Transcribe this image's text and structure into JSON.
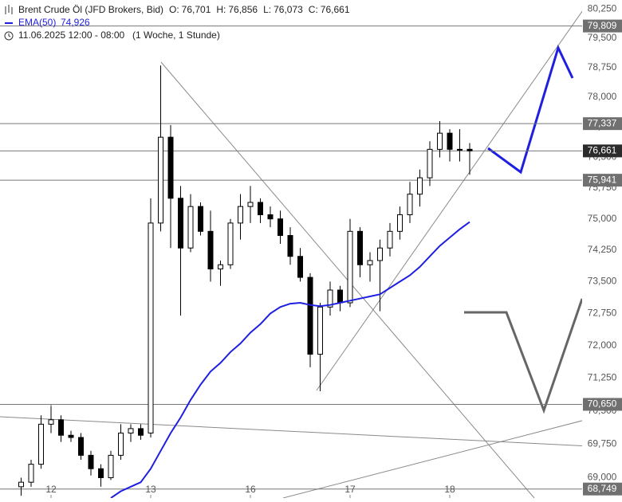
{
  "chart_data": {
    "type": "candlestick",
    "legend": {
      "ohlc": [
        {
          "key": "O:",
          "value": "76,701"
        },
        {
          "key": "H:",
          "value": "76,856"
        },
        {
          "key": "L:",
          "value": "76,073"
        },
        {
          "key": "C:",
          "value": "76,661"
        }
      ],
      "date": "11.06.2025 12:00 - 08:00",
      "period": "(1 Woche, 1 Stunde)"
    },
    "categories": [
      null,
      null,
      null,
      "12",
      null,
      null,
      null,
      null,
      null,
      null,
      null,
      null,
      null,
      "13",
      null,
      null,
      null,
      null,
      null,
      null,
      null,
      null,
      null,
      "16",
      null,
      null,
      null,
      null,
      null,
      null,
      null,
      null,
      null,
      "17",
      null,
      null,
      null,
      null,
      null,
      null,
      null,
      null,
      null,
      "18",
      null,
      null
    ],
    "series": [
      {
        "name": "Brent Crude Öl (JFD Brokers, Bid)",
        "up_color": "#ffffff",
        "down_color": "#000000",
        "open": [
          68.8,
          68.9,
          69.3,
          70.2,
          70.3,
          69.95,
          69.9,
          69.5,
          69.2,
          69.0,
          69.5,
          70.0,
          70.1,
          70.0,
          74.9,
          77.0,
          75.5,
          74.3,
          75.3,
          74.7,
          73.8,
          73.9,
          74.9,
          75.3,
          75.4,
          75.1,
          75.0,
          74.6,
          74.1,
          73.6,
          71.8,
          72.9,
          73.3,
          73.0,
          74.7,
          73.9,
          74.0,
          74.3,
          74.7,
          75.1,
          75.6,
          76.0,
          76.7,
          77.1,
          76.7,
          76.701
        ],
        "high": [
          69.0,
          69.4,
          70.4,
          70.6,
          70.4,
          70.05,
          70.0,
          69.6,
          69.3,
          69.6,
          70.2,
          70.2,
          70.2,
          75.5,
          78.8,
          77.3,
          75.8,
          75.6,
          75.4,
          75.2,
          74.0,
          75.0,
          75.6,
          75.8,
          75.5,
          75.3,
          75.2,
          74.8,
          74.3,
          73.7,
          73.0,
          73.5,
          73.4,
          75.0,
          74.8,
          74.2,
          74.5,
          74.9,
          75.3,
          75.9,
          76.2,
          76.9,
          77.4,
          77.2,
          77.2,
          76.856
        ],
        "low": [
          68.6,
          68.8,
          69.2,
          70.0,
          69.8,
          69.8,
          69.4,
          69.05,
          68.8,
          68.95,
          69.4,
          69.8,
          69.85,
          69.9,
          74.7,
          74.3,
          72.7,
          74.2,
          74.6,
          73.5,
          73.4,
          73.8,
          74.5,
          74.9,
          74.9,
          74.8,
          74.4,
          73.9,
          73.5,
          71.5,
          70.95,
          72.7,
          72.8,
          72.9,
          73.6,
          73.5,
          72.8,
          74.1,
          74.5,
          74.9,
          75.3,
          75.8,
          76.5,
          76.4,
          76.4,
          76.073
        ],
        "close": [
          68.9,
          69.3,
          70.2,
          70.3,
          69.95,
          69.9,
          69.5,
          69.2,
          69.0,
          69.5,
          70.0,
          70.1,
          69.95,
          74.9,
          77.0,
          75.5,
          74.3,
          75.3,
          74.7,
          73.8,
          73.9,
          74.9,
          75.3,
          75.4,
          75.1,
          75.0,
          74.6,
          74.1,
          73.6,
          71.8,
          72.9,
          73.3,
          73.0,
          74.7,
          73.9,
          74.0,
          74.3,
          74.7,
          75.1,
          75.6,
          76.0,
          76.7,
          77.1,
          76.7,
          76.7,
          76.661
        ]
      },
      {
        "name": "EMA(50)",
        "type": "line",
        "color": "#1f1fe0",
        "value_label": "74,926",
        "values": [
          null,
          null,
          null,
          null,
          null,
          null,
          null,
          null,
          null,
          68.55,
          68.7,
          68.8,
          68.9,
          69.2,
          69.6,
          70.0,
          70.35,
          70.75,
          71.1,
          71.4,
          71.6,
          71.85,
          72.05,
          72.3,
          72.5,
          72.75,
          72.9,
          72.98,
          73.0,
          72.95,
          72.92,
          72.95,
          73.0,
          73.05,
          73.1,
          73.15,
          73.2,
          73.35,
          73.5,
          73.65,
          73.85,
          74.1,
          74.35,
          74.55,
          74.75,
          74.926
        ]
      }
    ],
    "ylim": [
      68.55,
      80.48
    ],
    "log_scale": true,
    "yticks": [
      {
        "value": 80.25,
        "label": "80,250"
      },
      {
        "value": 79.5,
        "label": "79,500"
      },
      {
        "value": 78.75,
        "label": "78,750"
      },
      {
        "value": 78,
        "label": "78,000"
      },
      {
        "value": 77.25,
        "label": "77,250"
      },
      {
        "value": 76.5,
        "label": "76,500"
      },
      {
        "value": 75.75,
        "label": "75,750"
      },
      {
        "value": 75,
        "label": "75,000"
      },
      {
        "value": 74.25,
        "label": "74,250"
      },
      {
        "value": 73.5,
        "label": "73,500"
      },
      {
        "value": 72.75,
        "label": "72,750"
      },
      {
        "value": 72,
        "label": "72,000"
      },
      {
        "value": 71.25,
        "label": "71,250"
      },
      {
        "value": 70.5,
        "label": "70,500"
      },
      {
        "value": 69.75,
        "label": "69,750"
      },
      {
        "value": 69,
        "label": "69,000"
      }
    ],
    "levels": [
      {
        "value": 79.809,
        "label": "79,809",
        "color": "#707070"
      },
      {
        "value": 77.337,
        "label": "77,337",
        "color": "#707070"
      },
      {
        "value": 76.661,
        "label": "76,661",
        "color": "#2b2b2b"
      },
      {
        "value": 75.941,
        "label": "75,941",
        "color": "#707070"
      },
      {
        "value": 70.65,
        "label": "70,650",
        "color": "#707070"
      },
      {
        "value": 68.749,
        "label": "68,749",
        "color": "#707070"
      }
    ]
  }
}
